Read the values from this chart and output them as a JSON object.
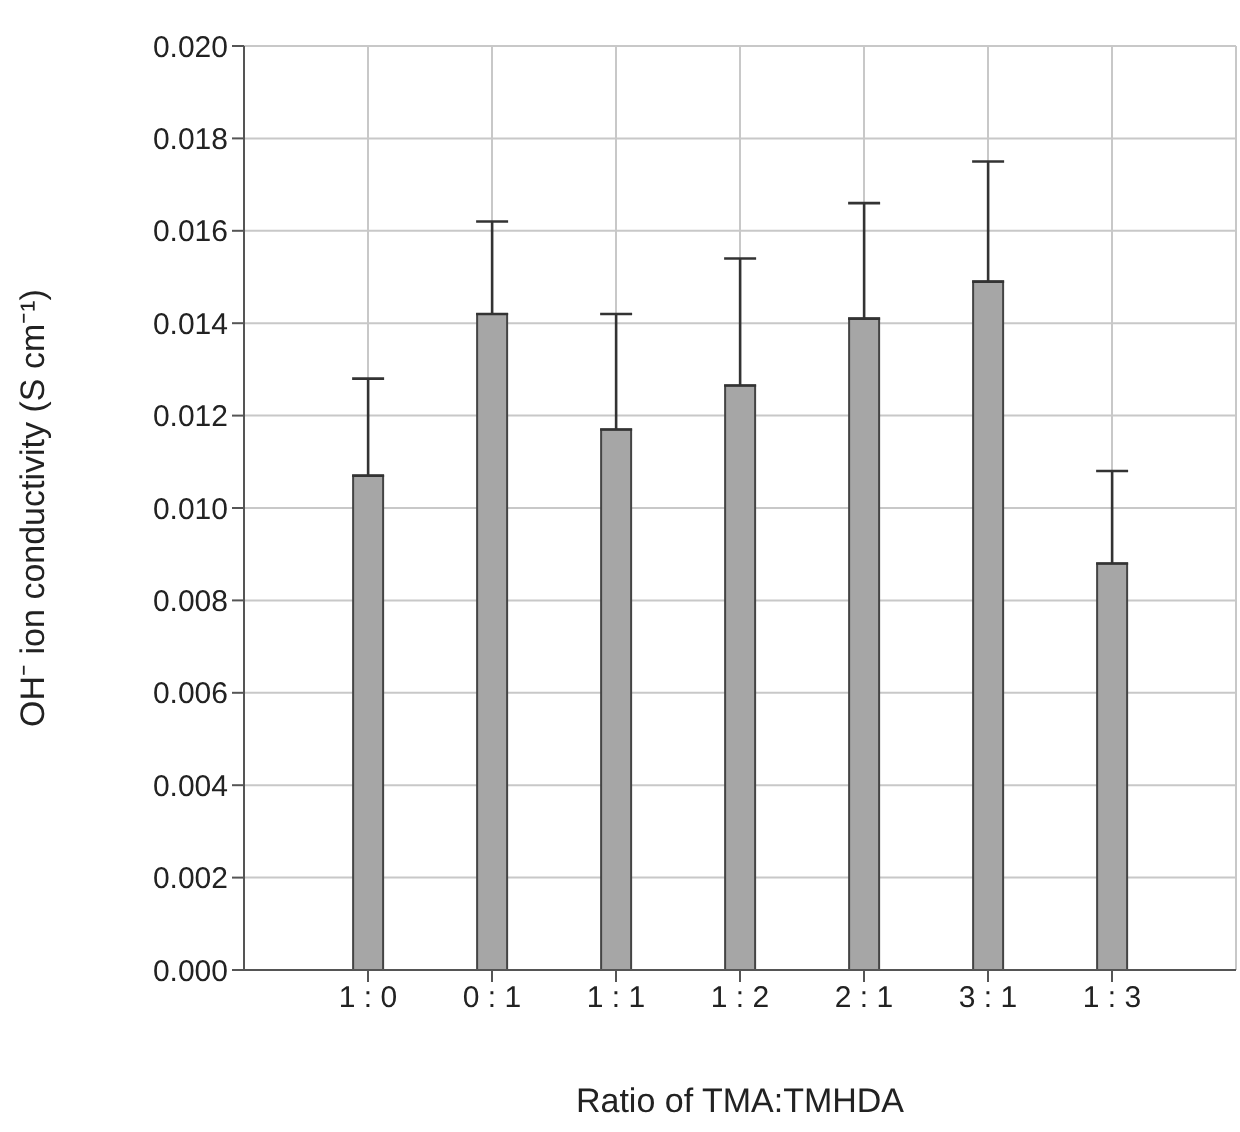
{
  "chart_data": {
    "type": "bar",
    "xlabel": "Ratio of TMA:TMHDA",
    "ylabel": "OH⁻ ion conductivity (S cm⁻¹)",
    "categories": [
      "1 : 0",
      "0 : 1",
      "1 : 1",
      "1 : 2",
      "2 : 1",
      "3 : 1",
      "1 : 3"
    ],
    "values": [
      0.0107,
      0.0142,
      0.0117,
      0.01265,
      0.0141,
      0.0149,
      0.0088
    ],
    "errors": [
      [
        0.0107,
        0.0128
      ],
      [
        0.0142,
        0.0162
      ],
      [
        0.0117,
        0.0142
      ],
      [
        0.01265,
        0.0154
      ],
      [
        0.0141,
        0.0166
      ],
      [
        0.0149,
        0.0175
      ],
      [
        0.0088,
        0.0108
      ]
    ],
    "color": "#a6a6a6",
    "ylim": [
      0,
      0.02
    ],
    "yticks": [
      {
        "value": 0,
        "label": "0.000"
      },
      {
        "value": 0.002,
        "label": "0.002"
      },
      {
        "value": 0.004,
        "label": "0.004"
      },
      {
        "value": 0.006,
        "label": "0.006"
      },
      {
        "value": 0.008,
        "label": "0.008"
      },
      {
        "value": 0.01,
        "label": "0.010"
      },
      {
        "value": 0.012,
        "label": "0.012"
      },
      {
        "value": 0.014,
        "label": "0.014"
      },
      {
        "value": 0.016,
        "label": "0.016"
      },
      {
        "value": 0.018,
        "label": "0.018"
      },
      {
        "value": 0.02,
        "label": "0.020"
      }
    ],
    "grid": true,
    "legend": false
  }
}
